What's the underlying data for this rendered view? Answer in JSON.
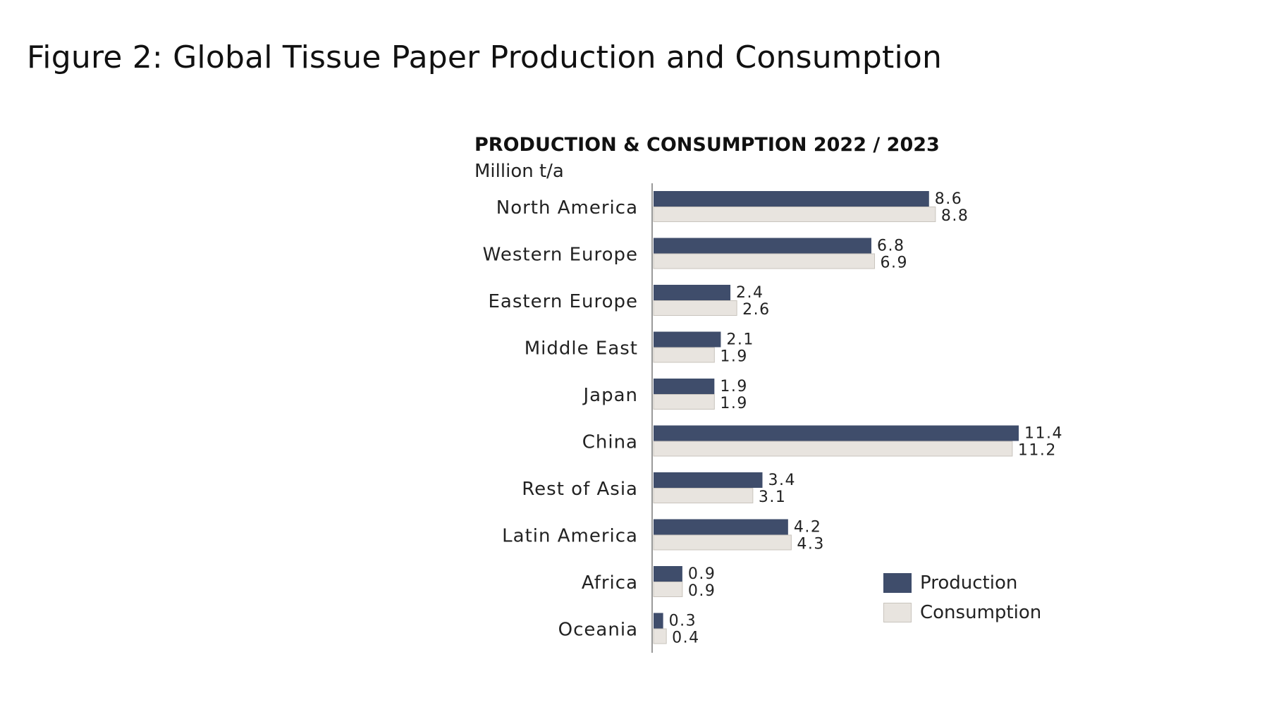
{
  "page": {
    "figure_title": "Figure 2: Global Tissue Paper Production and Consumption"
  },
  "chart_data": {
    "type": "bar",
    "orientation": "horizontal",
    "title": "PRODUCTION & CONSUMPTION 2022 / 2023",
    "subtitle": "Million t/a",
    "categories": [
      "North America",
      "Western Europe",
      "Eastern Europe",
      "Middle East",
      "Japan",
      "China",
      "Rest of Asia",
      "Latin America",
      "Africa",
      "Oceania"
    ],
    "series": [
      {
        "name": "Production",
        "color": "#3f4d6b",
        "values": [
          8.6,
          6.8,
          2.4,
          2.1,
          1.9,
          11.4,
          3.4,
          4.2,
          0.9,
          0.3
        ]
      },
      {
        "name": "Consumption",
        "color": "#e8e4df",
        "values": [
          8.8,
          6.9,
          2.6,
          1.9,
          1.9,
          11.2,
          3.1,
          4.3,
          0.9,
          0.4
        ]
      }
    ],
    "value_labels": {
      "Production": [
        "8.6",
        "6.8",
        "2.4",
        "2.1",
        "1.9",
        "11.4",
        "3.4",
        "4.2",
        "0.9",
        "0.3"
      ],
      "Consumption": [
        "8.8",
        "6.9",
        "2.6",
        "1.9",
        "1.9",
        "11.2",
        "3.1",
        "4.3",
        "0.9",
        "0.4"
      ]
    },
    "xlim": [
      0,
      12
    ],
    "grid": false,
    "legend_position": "bottom-right",
    "consumption_border_color": "#c9c4bd"
  }
}
